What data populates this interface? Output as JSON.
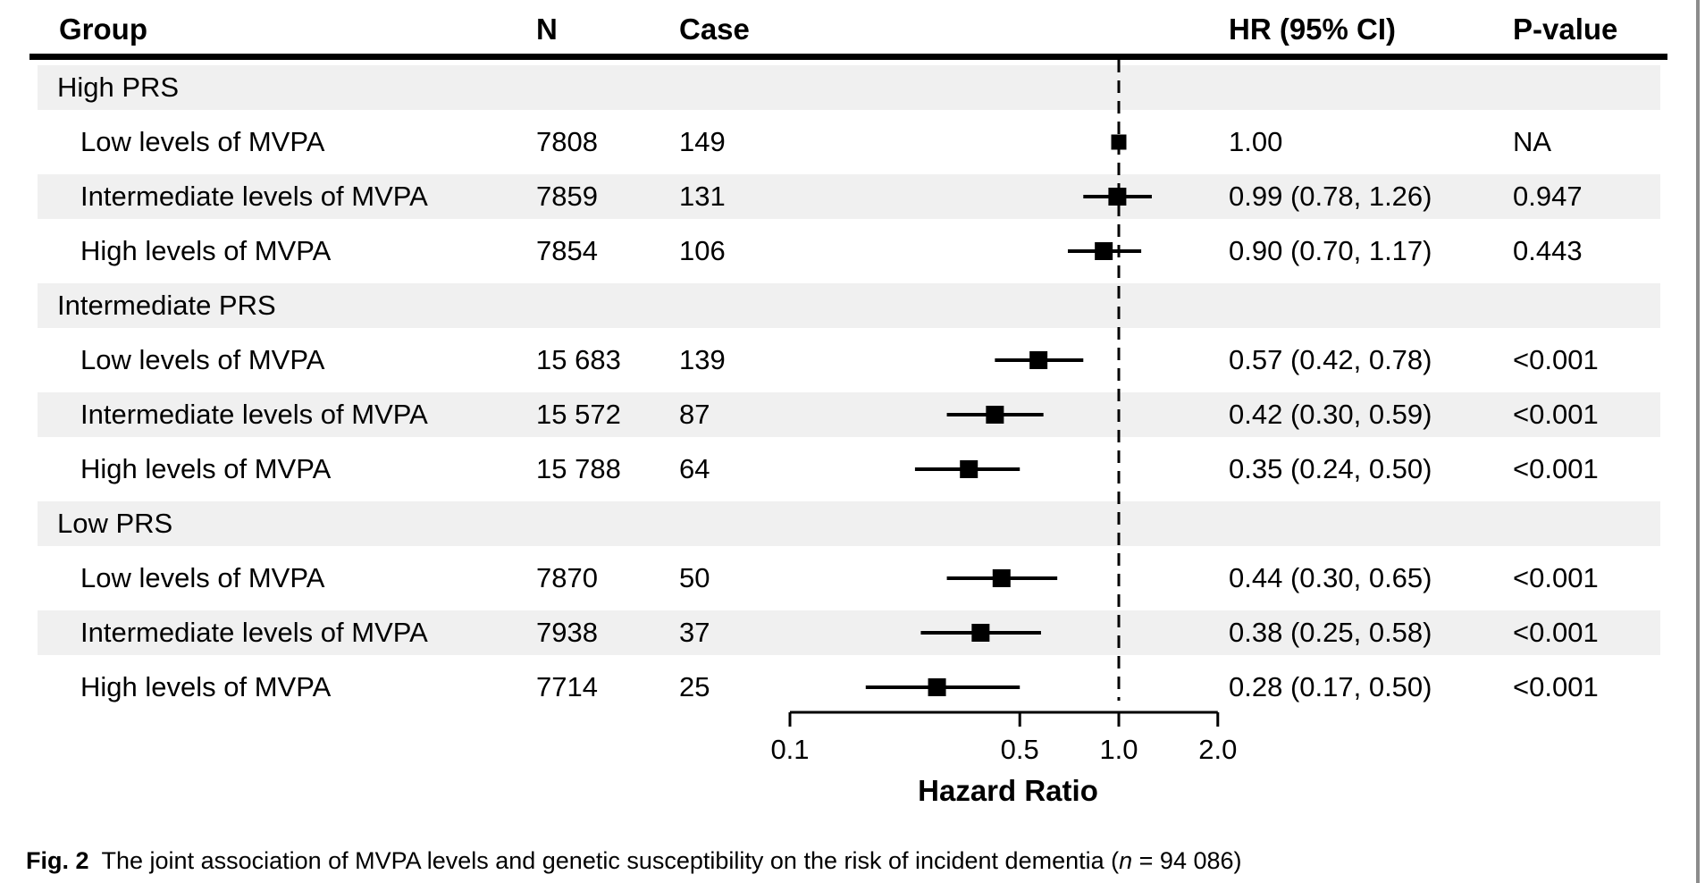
{
  "header": {
    "group": "Group",
    "n": "N",
    "case": "Case",
    "hr": "HR (95% CI)",
    "p": "P-value"
  },
  "chart_data": {
    "type": "scatter",
    "variant": "forest_plot",
    "x_scale": "log",
    "xlabel": "Hazard Ratio",
    "x_ticks": [
      "0.1",
      "0.5",
      "1.0",
      "2.0"
    ],
    "x_tick_values": [
      0.1,
      0.5,
      1.0,
      2.0
    ],
    "xlim": [
      0.1,
      2.0
    ],
    "reference_line": 1.0,
    "columns": [
      "Group",
      "N",
      "Case",
      "HR (95% CI)",
      "P-value"
    ],
    "rows": [
      {
        "label": "High PRS",
        "type": "group"
      },
      {
        "label": "Low levels of MVPA",
        "type": "item",
        "n": "7808",
        "cases": "149",
        "hr": 1.0,
        "ci_low": null,
        "ci_high": null,
        "hr_text": "1.00",
        "p_value": "NA"
      },
      {
        "label": "Intermediate levels of MVPA",
        "type": "item",
        "n": "7859",
        "cases": "131",
        "hr": 0.99,
        "ci_low": 0.78,
        "ci_high": 1.26,
        "hr_text": "0.99 (0.78, 1.26)",
        "p_value": "0.947"
      },
      {
        "label": "High levels of MVPA",
        "type": "item",
        "n": "7854",
        "cases": "106",
        "hr": 0.9,
        "ci_low": 0.7,
        "ci_high": 1.17,
        "hr_text": "0.90 (0.70, 1.17)",
        "p_value": "0.443"
      },
      {
        "label": "Intermediate PRS",
        "type": "group"
      },
      {
        "label": "Low levels of MVPA",
        "type": "item",
        "n": "15 683",
        "cases": "139",
        "hr": 0.57,
        "ci_low": 0.42,
        "ci_high": 0.78,
        "hr_text": "0.57 (0.42, 0.78)",
        "p_value": "<0.001"
      },
      {
        "label": "Intermediate levels of MVPA",
        "type": "item",
        "n": "15 572",
        "cases": "87",
        "hr": 0.42,
        "ci_low": 0.3,
        "ci_high": 0.59,
        "hr_text": "0.42 (0.30, 0.59)",
        "p_value": "<0.001"
      },
      {
        "label": "High levels of MVPA",
        "type": "item",
        "n": "15 788",
        "cases": "64",
        "hr": 0.35,
        "ci_low": 0.24,
        "ci_high": 0.5,
        "hr_text": "0.35 (0.24, 0.50)",
        "p_value": "<0.001"
      },
      {
        "label": "Low PRS",
        "type": "group"
      },
      {
        "label": "Low levels of MVPA",
        "type": "item",
        "n": "7870",
        "cases": "50",
        "hr": 0.44,
        "ci_low": 0.3,
        "ci_high": 0.65,
        "hr_text": "0.44 (0.30, 0.65)",
        "p_value": "<0.001"
      },
      {
        "label": "Intermediate levels of MVPA",
        "type": "item",
        "n": "7938",
        "cases": "37",
        "hr": 0.38,
        "ci_low": 0.25,
        "ci_high": 0.58,
        "hr_text": "0.38 (0.25, 0.58)",
        "p_value": "<0.001"
      },
      {
        "label": "High levels of MVPA",
        "type": "item",
        "n": "7714",
        "cases": "25",
        "hr": 0.28,
        "ci_low": 0.17,
        "ci_high": 0.5,
        "hr_text": "0.28 (0.17, 0.50)",
        "p_value": "<0.001"
      }
    ]
  },
  "caption": {
    "prefix": "Fig. 2",
    "text_before_n": "The joint association of MVPA levels and genetic susceptibility on the risk of incident dementia (",
    "n_symbol": "n",
    "text_after_n": " = 94 086)"
  },
  "colors": {
    "stripe": "#f0f0f0",
    "ink": "#000000",
    "edge_line": "#8c8c8c"
  }
}
